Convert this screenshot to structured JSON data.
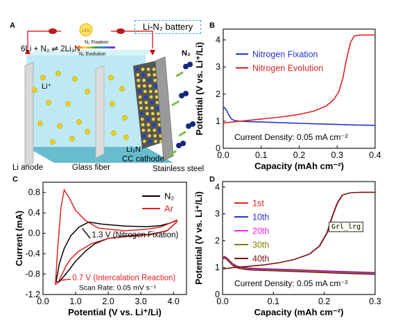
{
  "panels": {
    "a": {
      "letter": "A",
      "title": "Li-N₂ battery",
      "reaction": "6Li + N₂ ⇌ 2Li₃N",
      "fixation_label": "N₂ Fixation",
      "evolution_label": "N₂ Evolution",
      "bulb_label": "LED",
      "labels": {
        "li_ion": "Li⁺",
        "n2": "N₂",
        "li3n": "Li₃N",
        "li_anode": "Li anode",
        "glass_fiber": "Glass fiber",
        "cc_cathode": "CC cathode",
        "stainless_steel": "Stainless steel"
      }
    },
    "b": {
      "letter": "B"
    },
    "c": {
      "letter": "C"
    },
    "d": {
      "letter": "D"
    }
  },
  "tooltip": "Grl_lrg",
  "chart_data": [
    {
      "panel": "B",
      "type": "line",
      "xlabel": "Capacity (mAh cm⁻²)",
      "ylabel": "Potential (V vs. Li⁺/Li)",
      "xlim": [
        0.0,
        0.4
      ],
      "ylim": [
        0,
        4.4
      ],
      "xticks": [
        "0.0",
        "0.1",
        "0.2",
        "0.3",
        "0.4"
      ],
      "yticks": [
        "0",
        "1",
        "2",
        "3",
        "4"
      ],
      "legend_position": "top-right",
      "annotations": [
        "Current Density: 0.05 mA cm⁻²"
      ],
      "series": [
        {
          "name": "Nitrogen Fixation",
          "color": "#2233cc",
          "x": [
            0.0,
            0.003,
            0.008,
            0.015,
            0.022,
            0.03,
            0.045,
            0.06,
            0.1,
            0.15,
            0.2,
            0.25,
            0.3,
            0.35,
            0.4
          ],
          "y": [
            1.45,
            1.5,
            1.42,
            1.22,
            1.08,
            1.02,
            1.0,
            0.99,
            0.97,
            0.95,
            0.92,
            0.9,
            0.88,
            0.86,
            0.85
          ]
        },
        {
          "name": "Nitrogen Evolution",
          "color": "#e02020",
          "x": [
            0.0,
            0.01,
            0.03,
            0.06,
            0.1,
            0.15,
            0.2,
            0.24,
            0.27,
            0.29,
            0.305,
            0.315,
            0.325,
            0.335,
            0.345,
            0.36,
            0.4
          ],
          "y": [
            0.92,
            0.95,
            0.98,
            1.02,
            1.08,
            1.15,
            1.25,
            1.38,
            1.55,
            1.78,
            2.1,
            2.6,
            3.3,
            3.9,
            4.15,
            4.18,
            4.18
          ]
        }
      ]
    },
    {
      "panel": "C",
      "type": "line",
      "xlabel": "Potential (V vs. Li⁺/Li)",
      "ylabel": "Current (mA)",
      "xlim": [
        0,
        4.4
      ],
      "ylim": [
        -1.2,
        1.0
      ],
      "xticks": [
        "0.0",
        "1.0",
        "2.0",
        "3.0",
        "4.0"
      ],
      "yticks": [
        "-1.2",
        "-0.8",
        "-0.4",
        "0.0",
        "0.4",
        "0.8"
      ],
      "legend_position": "top-right",
      "annotations": [
        "1.3 V (Nitrogen Fixation)",
        "0.7 V (Intercalation Reaction)",
        "Scan Rate: 0.05 mV s⁻¹"
      ],
      "series": [
        {
          "name": "N₂",
          "color": "#000000",
          "x": [
            0.4,
            0.5,
            0.65,
            0.85,
            1.1,
            1.4,
            1.8,
            2.5,
            3.2,
            3.6,
            3.9,
            4.1,
            4.1,
            3.8,
            3.3,
            2.6,
            2.0,
            1.6,
            1.3,
            1.0,
            0.7,
            0.5,
            0.4
          ],
          "y": [
            -0.95,
            -0.6,
            -0.3,
            -0.05,
            0.12,
            0.22,
            0.18,
            0.14,
            0.13,
            0.15,
            0.2,
            0.25,
            0.22,
            0.05,
            -0.02,
            -0.05,
            -0.1,
            -0.2,
            -0.35,
            -0.55,
            -0.8,
            -0.95,
            -0.95
          ]
        },
        {
          "name": "Ar",
          "color": "#e02020",
          "x": [
            0.38,
            0.45,
            0.55,
            0.65,
            0.8,
            1.0,
            1.3,
            1.7,
            2.5,
            3.2,
            3.6,
            3.9,
            4.1,
            4.1,
            3.8,
            3.3,
            2.6,
            2.0,
            1.5,
            1.1,
            0.85,
            0.7,
            0.55,
            0.45,
            0.38
          ],
          "y": [
            -1.0,
            -0.3,
            0.5,
            0.85,
            0.7,
            0.45,
            0.25,
            0.1,
            0.05,
            0.08,
            0.12,
            0.2,
            0.26,
            0.22,
            0.05,
            -0.03,
            -0.06,
            -0.1,
            -0.2,
            -0.35,
            -0.5,
            -0.65,
            -0.85,
            -0.98,
            -1.0
          ]
        }
      ]
    },
    {
      "panel": "D",
      "type": "line",
      "xlabel": "Capacity (mAh cm⁻²)",
      "ylabel": "Potential (V vs. Li⁺/Li)",
      "xlim": [
        0.0,
        0.3
      ],
      "ylim": [
        0,
        4.2
      ],
      "xticks": [
        "0.0",
        "0.1",
        "0.2",
        "0.3"
      ],
      "yticks": [
        "0",
        "1",
        "2",
        "3",
        "4"
      ],
      "legend_position": "top-left",
      "annotations": [
        "Current Density: 0.05 mA cm⁻²"
      ],
      "series": [
        {
          "name": "1st",
          "color": "#e02020",
          "dy": 0.0
        },
        {
          "name": "10th",
          "color": "#2233cc",
          "dy": 0.03
        },
        {
          "name": "20th",
          "color": "#ee22ee",
          "dy": 0.06
        },
        {
          "name": "30th",
          "color": "#808000",
          "dy": 0.09
        },
        {
          "name": "40th",
          "color": "#7a1010",
          "dy": 0.12
        }
      ],
      "fixation_curve": {
        "x": [
          0.0,
          0.005,
          0.012,
          0.02,
          0.03,
          0.045,
          0.06,
          0.1,
          0.15,
          0.2,
          0.25,
          0.3
        ],
        "y": [
          1.4,
          1.42,
          1.3,
          1.15,
          1.05,
          1.0,
          0.98,
          0.95,
          0.92,
          0.88,
          0.85,
          0.82
        ]
      },
      "evolution_curve": {
        "x": [
          0.0,
          0.02,
          0.05,
          0.08,
          0.11,
          0.14,
          0.17,
          0.19,
          0.205,
          0.215,
          0.225,
          0.235,
          0.25,
          0.27,
          0.3
        ],
        "y": [
          0.95,
          1.0,
          1.05,
          1.1,
          1.18,
          1.3,
          1.5,
          1.8,
          2.3,
          2.9,
          3.4,
          3.7,
          3.78,
          3.8,
          3.8
        ]
      }
    }
  ]
}
